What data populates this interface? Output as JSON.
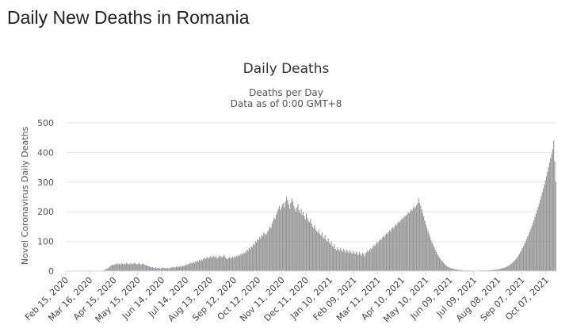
{
  "page": {
    "title": "Daily New Deaths in Romania"
  },
  "chart_data": {
    "type": "bar",
    "title": "Daily Deaths",
    "subtitle_lines": [
      "Deaths per Day",
      "Data as of 0:00 GMT+8"
    ],
    "xlabel": "",
    "ylabel": "Novel Coronavirus Daily Deaths",
    "ylim": [
      0,
      500
    ],
    "yticks": [
      0,
      100,
      200,
      300,
      400,
      500
    ],
    "grid": true,
    "bar_color": "#999999",
    "x_start": "2020-02-15",
    "x_end": "2021-10-20",
    "xticks": [
      {
        "date": "2020-02-15",
        "label": "Feb 15, 2020"
      },
      {
        "date": "2020-03-16",
        "label": "Mar 16, 2020"
      },
      {
        "date": "2020-04-15",
        "label": "Apr 15, 2020"
      },
      {
        "date": "2020-05-15",
        "label": "May 15, 2020"
      },
      {
        "date": "2020-06-14",
        "label": "Jun 14, 2020"
      },
      {
        "date": "2020-07-14",
        "label": "Jul 14, 2020"
      },
      {
        "date": "2020-08-13",
        "label": "Aug 13, 2020"
      },
      {
        "date": "2020-09-12",
        "label": "Sep 12, 2020"
      },
      {
        "date": "2020-10-12",
        "label": "Oct 12, 2020"
      },
      {
        "date": "2020-11-11",
        "label": "Nov 11, 2020"
      },
      {
        "date": "2020-12-11",
        "label": "Dec 11, 2020"
      },
      {
        "date": "2021-01-10",
        "label": "Jan 10, 2021"
      },
      {
        "date": "2021-02-09",
        "label": "Feb 09, 2021"
      },
      {
        "date": "2021-03-11",
        "label": "Mar 11, 2021"
      },
      {
        "date": "2021-04-10",
        "label": "Apr 10, 2021"
      },
      {
        "date": "2021-05-10",
        "label": "May 10, 2021"
      },
      {
        "date": "2021-06-09",
        "label": "Jun 09, 2021"
      },
      {
        "date": "2021-07-09",
        "label": "Jul 09, 2021"
      },
      {
        "date": "2021-08-08",
        "label": "Aug 08, 2021"
      },
      {
        "date": "2021-09-07",
        "label": "Sep 07, 2021"
      },
      {
        "date": "2021-10-07",
        "label": "Oct 07, 2021"
      }
    ],
    "series": [
      {
        "values": [
          0,
          0,
          0,
          0,
          0,
          0,
          0,
          0,
          0,
          0,
          0,
          0,
          0,
          0,
          0,
          0,
          0,
          0,
          0,
          0,
          0,
          0,
          0,
          0,
          0,
          0,
          0,
          0,
          0,
          0,
          0,
          0,
          0,
          0,
          0,
          0,
          2,
          4,
          6,
          8,
          10,
          12,
          15,
          18,
          20,
          22,
          20,
          24,
          22,
          26,
          23,
          25,
          21,
          27,
          24,
          22,
          26,
          23,
          28,
          25,
          24,
          22,
          27,
          25,
          23,
          26,
          28,
          24,
          22,
          25,
          27,
          23,
          21,
          24,
          26,
          22,
          20,
          19,
          18,
          16,
          15,
          14,
          12,
          13,
          11,
          10,
          12,
          9,
          11,
          10,
          8,
          9,
          10,
          12,
          11,
          9,
          10,
          8,
          11,
          9,
          10,
          12,
          13,
          11,
          14,
          12,
          15,
          13,
          16,
          14,
          17,
          15,
          18,
          16,
          19,
          22,
          20,
          24,
          22,
          26,
          28,
          25,
          30,
          27,
          32,
          29,
          35,
          31,
          38,
          34,
          40,
          36,
          42,
          45,
          40,
          44,
          48,
          42,
          46,
          50,
          44,
          48,
          52,
          46,
          50,
          42,
          46,
          48,
          52,
          49,
          45,
          50,
          55,
          47,
          42,
          40,
          44,
          46,
          42,
          45,
          48,
          44,
          50,
          47,
          52,
          49,
          55,
          51,
          58,
          54,
          62,
          58,
          66,
          62,
          72,
          68,
          78,
          74,
          85,
          80,
          92,
          88,
          100,
          96,
          108,
          104,
          115,
          110,
          122,
          118,
          130,
          125,
          120,
          128,
          135,
          140,
          150,
          145,
          160,
          170,
          180,
          175,
          190,
          200,
          210,
          220,
          205,
          215,
          225,
          230,
          215,
          235,
          250,
          240,
          225,
          210,
          230,
          245,
          235,
          220,
          210,
          200,
          215,
          225,
          205,
          195,
          210,
          190,
          200,
          185,
          175,
          195,
          180,
          170,
          165,
          175,
          160,
          150,
          145,
          155,
          140,
          135,
          130,
          140,
          125,
          120,
          130,
          115,
          110,
          120,
          105,
          100,
          110,
          95,
          90,
          100,
          85,
          80,
          90,
          75,
          70,
          80,
          72,
          68,
          78,
          70,
          65,
          75,
          68,
          62,
          72,
          66,
          60,
          70,
          64,
          58,
          68,
          62,
          56,
          66,
          60,
          54,
          64,
          58,
          52,
          62,
          56,
          50,
          60,
          64,
          70,
          66,
          72,
          78,
          74,
          82,
          88,
          84,
          92,
          98,
          94,
          102,
          108,
          104,
          112,
          118,
          114,
          122,
          128,
          124,
          132,
          138,
          134,
          142,
          148,
          144,
          152,
          158,
          154,
          162,
          168,
          164,
          172,
          178,
          174,
          182,
          188,
          184,
          192,
          198,
          194,
          202,
          208,
          204,
          212,
          218,
          214,
          222,
          228,
          245,
          230,
          220,
          208,
          195,
          184,
          170,
          158,
          146,
          135,
          125,
          115,
          105,
          96,
          88,
          80,
          72,
          65,
          58,
          52,
          46,
          41,
          36,
          32,
          28,
          24,
          20,
          17,
          15,
          13,
          11,
          10,
          9,
          8,
          7,
          6,
          5,
          5,
          4,
          4,
          3,
          3,
          3,
          2,
          2,
          2,
          2,
          2,
          2,
          2,
          2,
          1,
          1,
          1,
          1,
          1,
          1,
          1,
          1,
          2,
          2,
          2,
          2,
          2,
          2,
          2,
          2,
          3,
          3,
          3,
          3,
          4,
          4,
          4,
          5,
          5,
          6,
          6,
          7,
          8,
          9,
          10,
          11,
          12,
          14,
          15,
          17,
          19,
          21,
          24,
          27,
          30,
          34,
          38,
          42,
          47,
          52,
          58,
          64,
          70,
          77,
          84,
          92,
          100,
          108,
          116,
          124,
          133,
          142,
          152,
          162,
          172,
          183,
          194,
          205,
          216,
          228,
          240,
          252,
          265,
          278,
          292,
          306,
          320,
          335,
          350,
          365,
          380,
          395,
          410,
          440,
          370,
          300
        ]
      }
    ]
  }
}
